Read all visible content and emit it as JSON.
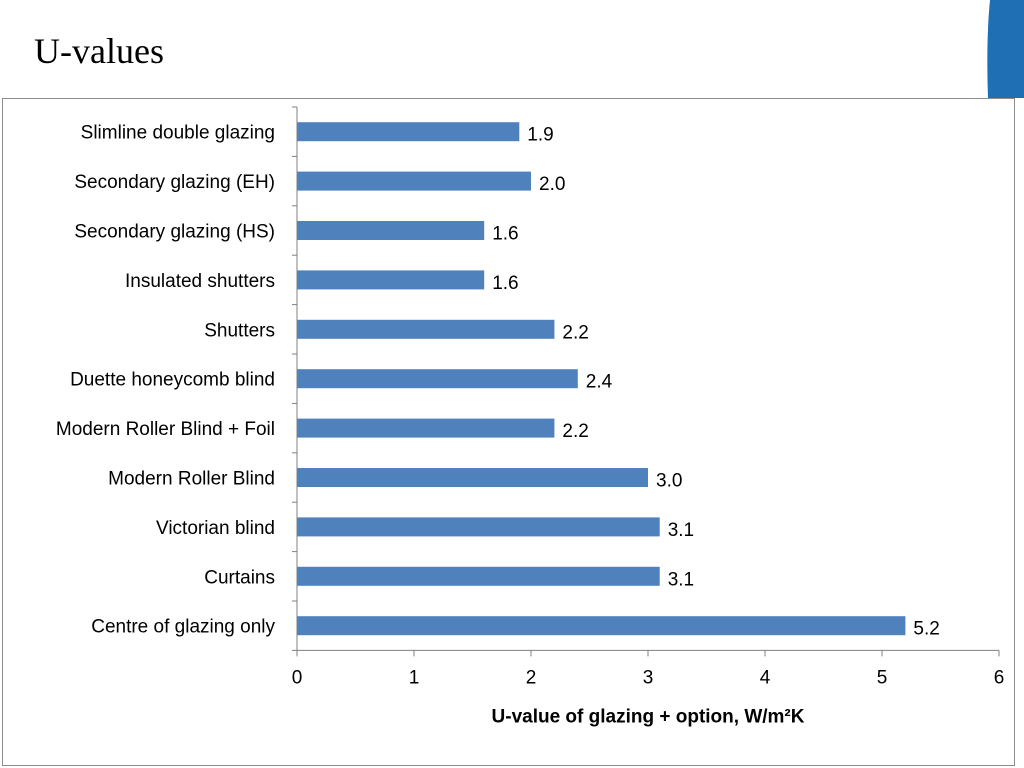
{
  "slide": {
    "title": "U-values"
  },
  "colors": {
    "bar": "#4f81bd",
    "corner_accent": "#1f6fb5",
    "axis": "#808080"
  },
  "chart_data": {
    "type": "bar",
    "orientation": "horizontal",
    "categories": [
      "Slimline double glazing",
      "Secondary glazing (EH)",
      "Secondary glazing (HS)",
      "Insulated shutters",
      "Shutters",
      "Duette honeycomb blind",
      "Modern Roller Blind + Foil",
      "Modern Roller Blind",
      "Victorian blind",
      "Curtains",
      "Centre of glazing only"
    ],
    "values": [
      1.9,
      2.0,
      1.6,
      1.6,
      2.2,
      2.4,
      2.2,
      3.0,
      3.1,
      3.1,
      5.2
    ],
    "value_labels": [
      "1.9",
      "2.0",
      "1.6",
      "1.6",
      "2.2",
      "2.4",
      "2.2",
      "3.0",
      "3.1",
      "3.1",
      "5.2"
    ],
    "xticks": [
      "0",
      "1",
      "2",
      "3",
      "4",
      "5",
      "6"
    ],
    "xlim": [
      0,
      6
    ],
    "xlabel": "U-value of glazing + option, W/m²K",
    "ylabel": "",
    "title": "",
    "grid": false,
    "legend": "none"
  }
}
